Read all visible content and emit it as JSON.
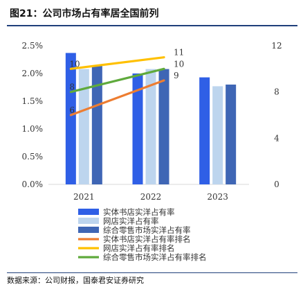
{
  "title": "图21：公司市场占有率居全国前列",
  "source": "数据来源：公司财报，国泰君安证券研究",
  "chart_data": {
    "type": "bar",
    "categories": [
      "2021",
      "2022",
      "2023"
    ],
    "left_axis": {
      "ylim": [
        0,
        2.5
      ],
      "ticks": [
        "0.0%",
        "0.5%",
        "1.0%",
        "1.5%",
        "2.0%",
        "2.5%"
      ]
    },
    "right_axis": {
      "ylim": [
        0,
        12
      ],
      "ticks": [
        "0",
        "4",
        "8",
        "12"
      ]
    },
    "grid": false,
    "legend_position": "bottom",
    "bar_series": [
      {
        "name": "实体书店实洋占有率",
        "color": "#2f5fe6",
        "values": [
          2.37,
          2.0,
          1.93
        ]
      },
      {
        "name": "网店实洋占有率",
        "color": "#bdd5ee",
        "values": [
          2.08,
          2.08,
          1.77
        ]
      },
      {
        "name": "综合零售市场实洋占有率",
        "color": "#3f66b5",
        "values": [
          2.15,
          2.08,
          1.8
        ]
      }
    ],
    "line_series": [
      {
        "name": "实体书店实洋占有率排名",
        "color": "#ed7d31",
        "values": [
          6,
          9
        ],
        "labels": [
          "6",
          "9"
        ]
      },
      {
        "name": "网店实洋占有率排名",
        "color": "#ffc000",
        "values": [
          10,
          11
        ],
        "labels": [
          "10",
          "11"
        ]
      },
      {
        "name": "综合零售市场实洋占有率排名",
        "color": "#5faa3c",
        "values": [
          8,
          10
        ],
        "labels": [
          "8",
          "10"
        ]
      }
    ]
  }
}
